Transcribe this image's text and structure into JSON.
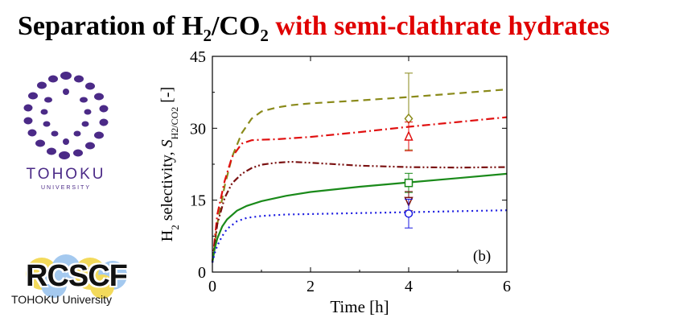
{
  "title": {
    "part_black": "Separation of H",
    "sub1": "2",
    "part_black2": "/CO",
    "sub2": "2",
    "part_red": " with semi-clathrate hydrates"
  },
  "logos": {
    "tohoku_word": "TOHOKU",
    "tohoku_sub": "UNIVERSITY",
    "rcscf_big": "RCSCF",
    "rcscf_small": "TOHOKU University"
  },
  "colors": {
    "olive": "#8a8a1a",
    "red": "#e01010",
    "darkred": "#7a1010",
    "green": "#1a8a1a",
    "blue": "#1a1ae0",
    "purple": "#4b2a87"
  },
  "chart_data": {
    "type": "line",
    "xlabel": "Time [h]",
    "ylabel_prefix": "H",
    "ylabel_sub": "2",
    "ylabel_mid": " selectivity, ",
    "ylabel_S": "S",
    "ylabel_ssub": "H2/CO2",
    "ylabel_unit": " [-]",
    "xlim": [
      0,
      6
    ],
    "ylim": [
      0,
      45
    ],
    "xticks": [
      0,
      2,
      4,
      6
    ],
    "yticks": [
      0,
      15,
      30,
      45
    ],
    "panel_label": "(b)",
    "series": [
      {
        "color": "olive",
        "dash": "9,6",
        "x": [
          0,
          0.1,
          0.25,
          0.4,
          0.6,
          0.8,
          1.0,
          1.3,
          1.6,
          2,
          3,
          4,
          5,
          6
        ],
        "y": [
          2,
          10,
          18,
          24,
          29,
          32,
          33.5,
          34.3,
          34.8,
          35.2,
          35.8,
          36.5,
          37.3,
          38.1
        ]
      },
      {
        "color": "red",
        "dash": "10,4,2,4",
        "x": [
          0,
          0.1,
          0.25,
          0.4,
          0.6,
          0.8,
          1.0,
          1.3,
          1.6,
          2,
          3,
          4,
          5,
          6
        ],
        "y": [
          2,
          12,
          19,
          24,
          26.8,
          27.5,
          27.6,
          27.7,
          27.9,
          28.2,
          29.2,
          30.3,
          31.3,
          32.3
        ]
      },
      {
        "color": "darkred",
        "dash": "8,3,2,3,2,3",
        "x": [
          0,
          0.1,
          0.25,
          0.4,
          0.6,
          0.8,
          1.0,
          1.3,
          1.6,
          2,
          3,
          4,
          5,
          6
        ],
        "y": [
          2,
          10,
          15.5,
          18.5,
          20.5,
          21.7,
          22.4,
          22.8,
          23.0,
          22.8,
          22.2,
          21.9,
          21.8,
          21.9
        ]
      },
      {
        "color": "green",
        "dash": "",
        "x": [
          0,
          0.05,
          0.1,
          0.2,
          0.3,
          0.5,
          0.7,
          1.0,
          1.5,
          2,
          3,
          4,
          5,
          6
        ],
        "y": [
          2,
          5,
          7,
          9.5,
          11,
          12.8,
          13.8,
          14.8,
          15.9,
          16.7,
          17.8,
          18.7,
          19.6,
          20.5
        ]
      },
      {
        "color": "blue",
        "dash": "2,4",
        "x": [
          0,
          0.05,
          0.1,
          0.2,
          0.3,
          0.5,
          0.7,
          1.0,
          1.5,
          2,
          3,
          4,
          5,
          6
        ],
        "y": [
          2,
          4,
          5.5,
          7.5,
          9,
          10.6,
          11.3,
          11.7,
          12.0,
          12.1,
          12.3,
          12.5,
          12.7,
          12.9
        ]
      }
    ],
    "points": [
      {
        "color": "olive",
        "marker": "diamond",
        "x": 4,
        "y": 32,
        "err_lo": 25.5,
        "err_hi": 41.5
      },
      {
        "color": "red",
        "marker": "triangle-up",
        "x": 4,
        "y": 28.3,
        "err_lo": 25.3,
        "err_hi": 31.3
      },
      {
        "color": "green",
        "marker": "square",
        "x": 4,
        "y": 18.6,
        "err_lo": 16.6,
        "err_hi": 20.6
      },
      {
        "color": "darkred",
        "marker": "triangle-down",
        "x": 4,
        "y": 14.8,
        "err_lo": 12.8,
        "err_hi": 16.8
      },
      {
        "color": "blue",
        "marker": "circle",
        "x": 4,
        "y": 12.2,
        "err_lo": 9.2,
        "err_hi": 15.2
      }
    ]
  }
}
